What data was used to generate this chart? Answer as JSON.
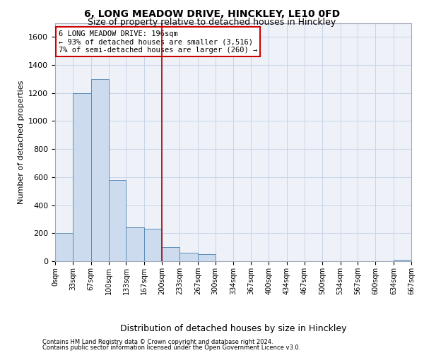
{
  "title": "6, LONG MEADOW DRIVE, HINCKLEY, LE10 0FD",
  "subtitle": "Size of property relative to detached houses in Hinckley",
  "xlabel": "Distribution of detached houses by size in Hinckley",
  "ylabel": "Number of detached properties",
  "footnote1": "Contains HM Land Registry data © Crown copyright and database right 2024.",
  "footnote2": "Contains public sector information licensed under the Open Government Licence v3.0.",
  "bar_left_edges": [
    0,
    33,
    67,
    100,
    133,
    167,
    200,
    233,
    267,
    300,
    334,
    367,
    400,
    434,
    467,
    500,
    534,
    567,
    600,
    634
  ],
  "bar_right_edges": [
    33,
    67,
    100,
    133,
    167,
    200,
    233,
    267,
    300,
    334,
    367,
    400,
    434,
    467,
    500,
    534,
    567,
    600,
    634,
    667
  ],
  "bar_heights": [
    200,
    1200,
    1300,
    580,
    240,
    230,
    100,
    60,
    50,
    0,
    0,
    0,
    0,
    0,
    0,
    0,
    0,
    0,
    0,
    10
  ],
  "bar_color": "#ccdcee",
  "bar_edge_color": "#5b8db8",
  "vline_x": 200,
  "vline_color": "#aa0000",
  "ylim": [
    0,
    1700
  ],
  "yticks": [
    0,
    200,
    400,
    600,
    800,
    1000,
    1200,
    1400,
    1600
  ],
  "xlim": [
    0,
    667
  ],
  "xtick_positions": [
    0,
    33,
    67,
    100,
    133,
    167,
    200,
    233,
    267,
    300,
    334,
    367,
    400,
    434,
    467,
    500,
    534,
    567,
    600,
    634,
    667
  ],
  "xtick_labels": [
    "0sqm",
    "33sqm",
    "67sqm",
    "100sqm",
    "133sqm",
    "167sqm",
    "200sqm",
    "233sqm",
    "267sqm",
    "300sqm",
    "334sqm",
    "367sqm",
    "400sqm",
    "434sqm",
    "467sqm",
    "500sqm",
    "534sqm",
    "567sqm",
    "600sqm",
    "634sqm",
    "667sqm"
  ],
  "annotation_title": "6 LONG MEADOW DRIVE: 196sqm",
  "annotation_line1": "← 93% of detached houses are smaller (3,516)",
  "annotation_line2": "7% of semi-detached houses are larger (260) →",
  "annotation_box_color": "#cc0000",
  "grid_color": "#c8d4e8",
  "bg_color": "#eef2f8",
  "title_fontsize": 10,
  "subtitle_fontsize": 9,
  "annotation_fontsize": 7.5,
  "ylabel_fontsize": 8,
  "xlabel_fontsize": 9,
  "ytick_fontsize": 8,
  "xtick_fontsize": 7
}
